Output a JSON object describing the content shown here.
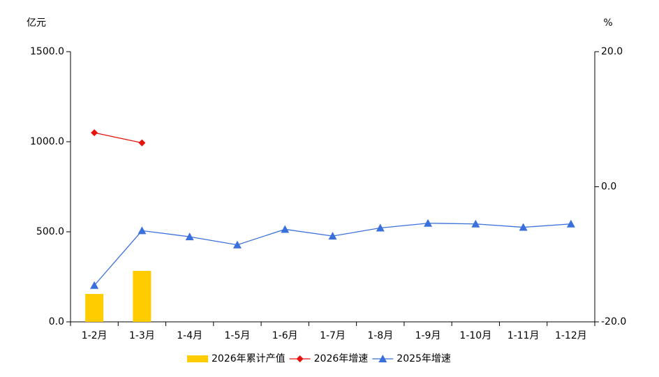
{
  "chart_data": {
    "type": "combo",
    "y_label": "亿元",
    "y2_label": "%",
    "categories": [
      "1-2月",
      "1-3月",
      "1-4月",
      "1-5月",
      "1-6月",
      "1-7月",
      "1-8月",
      "1-9月",
      "1-10月",
      "1-11月",
      "1-12月"
    ],
    "series": [
      {
        "name": "2026年累计产值",
        "type": "bar",
        "color": "#ffcc00",
        "axis": "y",
        "values": [
          155,
          283,
          null,
          null,
          null,
          null,
          null,
          null,
          null,
          null,
          null
        ]
      },
      {
        "name": "2026年增速",
        "type": "line",
        "marker": "diamond",
        "color": "#e8120c",
        "axis": "y2",
        "values": [
          8.0,
          6.5,
          null,
          null,
          null,
          null,
          null,
          null,
          null,
          null,
          null
        ]
      },
      {
        "name": "2025年增速",
        "type": "line",
        "marker": "triangle",
        "color": "#3a70db",
        "axis": "y2",
        "values": [
          -14.6,
          -6.5,
          -7.4,
          -8.6,
          -6.3,
          -7.3,
          -6.1,
          -5.4,
          -5.5,
          -6.0,
          -5.5
        ]
      }
    ],
    "ylim": [
      0,
      1500
    ],
    "yticks": [
      {
        "value": 0,
        "label": "0.0"
      },
      {
        "value": 500,
        "label": "500.0"
      },
      {
        "value": 1000,
        "label": "1000.0"
      },
      {
        "value": 1500,
        "label": "1500.0"
      }
    ],
    "y2lim": [
      -20,
      20
    ],
    "y2ticks": [
      {
        "value": -20,
        "label": "-20.0"
      },
      {
        "value": 0,
        "label": "0.0"
      },
      {
        "value": 20,
        "label": "20.0"
      }
    ],
    "legend": "bottom",
    "grid": false
  }
}
